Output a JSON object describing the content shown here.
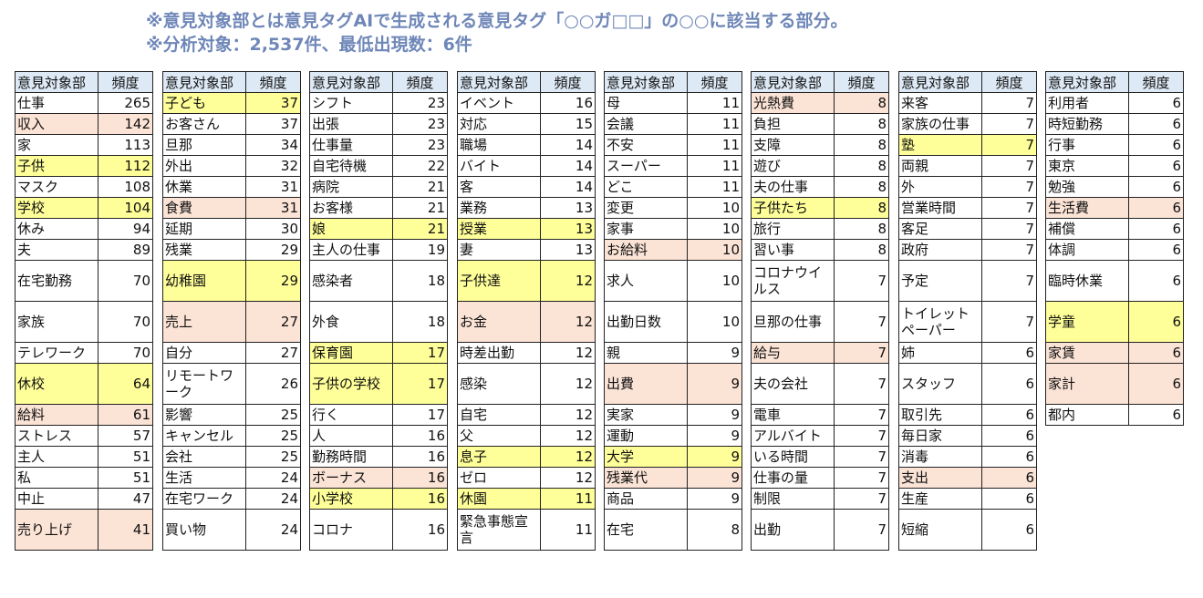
{
  "notes": {
    "line1": "※意見対象部とは意見タグAIで生成される意見タグ「○○ガ□□」の○○に該当する部分。",
    "line2": "※分析対象：2,537件、最低出現数：6件"
  },
  "headers": {
    "word": "意見対象部",
    "freq": "頻度"
  },
  "colors": {
    "yellow": "#ffff99",
    "pink": "#fbe3d6",
    "header": "#dde9f5",
    "note": "#6f87b8"
  },
  "columns": [
    [
      {
        "w": "仕事",
        "f": "265",
        "h": ""
      },
      {
        "w": "収入",
        "f": "142",
        "h": "pink"
      },
      {
        "w": "家",
        "f": "113",
        "h": ""
      },
      {
        "w": "子供",
        "f": "112",
        "h": "yellow"
      },
      {
        "w": "マスク",
        "f": "108",
        "h": ""
      },
      {
        "w": "学校",
        "f": "104",
        "h": "yellow"
      },
      {
        "w": "休み",
        "f": "94",
        "h": ""
      },
      {
        "w": "夫",
        "f": "89",
        "h": ""
      },
      {
        "w": "在宅勤務",
        "f": "70",
        "h": ""
      },
      {
        "w": "家族",
        "f": "70",
        "h": ""
      },
      {
        "w": "テレワーク",
        "f": "70",
        "h": ""
      },
      {
        "w": "休校",
        "f": "64",
        "h": "yellow"
      },
      {
        "w": "給料",
        "f": "61",
        "h": "pink"
      },
      {
        "w": "ストレス",
        "f": "57",
        "h": ""
      },
      {
        "w": "主人",
        "f": "51",
        "h": ""
      },
      {
        "w": "私",
        "f": "51",
        "h": ""
      },
      {
        "w": "中止",
        "f": "47",
        "h": ""
      },
      {
        "w": "売り上げ",
        "f": "41",
        "h": "pink"
      }
    ],
    [
      {
        "w": "子ども",
        "f": "37",
        "h": "yellow"
      },
      {
        "w": "お客さん",
        "f": "37",
        "h": ""
      },
      {
        "w": "旦那",
        "f": "34",
        "h": ""
      },
      {
        "w": "外出",
        "f": "32",
        "h": ""
      },
      {
        "w": "休業",
        "f": "31",
        "h": ""
      },
      {
        "w": "食費",
        "f": "31",
        "h": "pink"
      },
      {
        "w": "延期",
        "f": "30",
        "h": ""
      },
      {
        "w": "残業",
        "f": "29",
        "h": ""
      },
      {
        "w": "幼稚園",
        "f": "29",
        "h": "yellow"
      },
      {
        "w": "売上",
        "f": "27",
        "h": "pink"
      },
      {
        "w": "自分",
        "f": "27",
        "h": ""
      },
      {
        "w": "リモートワーク",
        "f": "26",
        "h": ""
      },
      {
        "w": "影響",
        "f": "25",
        "h": ""
      },
      {
        "w": "キャンセル",
        "f": "25",
        "h": ""
      },
      {
        "w": "会社",
        "f": "25",
        "h": ""
      },
      {
        "w": "生活",
        "f": "24",
        "h": ""
      },
      {
        "w": "在宅ワーク",
        "f": "24",
        "h": ""
      },
      {
        "w": "買い物",
        "f": "24",
        "h": ""
      }
    ],
    [
      {
        "w": "シフト",
        "f": "23",
        "h": ""
      },
      {
        "w": "出張",
        "f": "23",
        "h": ""
      },
      {
        "w": "仕事量",
        "f": "23",
        "h": ""
      },
      {
        "w": "自宅待機",
        "f": "22",
        "h": ""
      },
      {
        "w": "病院",
        "f": "21",
        "h": ""
      },
      {
        "w": "お客様",
        "f": "21",
        "h": ""
      },
      {
        "w": "娘",
        "f": "21",
        "h": "yellow"
      },
      {
        "w": "主人の仕事",
        "f": "19",
        "h": ""
      },
      {
        "w": "感染者",
        "f": "18",
        "h": ""
      },
      {
        "w": "外食",
        "f": "18",
        "h": ""
      },
      {
        "w": "保育園",
        "f": "17",
        "h": "yellow"
      },
      {
        "w": "子供の学校",
        "f": "17",
        "h": "yellow"
      },
      {
        "w": "行く",
        "f": "17",
        "h": ""
      },
      {
        "w": "人",
        "f": "16",
        "h": ""
      },
      {
        "w": "勤務時間",
        "f": "16",
        "h": ""
      },
      {
        "w": "ボーナス",
        "f": "16",
        "h": "pink"
      },
      {
        "w": "小学校",
        "f": "16",
        "h": "yellow"
      },
      {
        "w": "コロナ",
        "f": "16",
        "h": ""
      }
    ],
    [
      {
        "w": "イベント",
        "f": "16",
        "h": ""
      },
      {
        "w": "対応",
        "f": "15",
        "h": ""
      },
      {
        "w": "職場",
        "f": "14",
        "h": ""
      },
      {
        "w": "バイト",
        "f": "14",
        "h": ""
      },
      {
        "w": "客",
        "f": "14",
        "h": ""
      },
      {
        "w": "業務",
        "f": "13",
        "h": ""
      },
      {
        "w": "授業",
        "f": "13",
        "h": "yellow"
      },
      {
        "w": "妻",
        "f": "13",
        "h": ""
      },
      {
        "w": "子供達",
        "f": "12",
        "h": "yellow"
      },
      {
        "w": "お金",
        "f": "12",
        "h": "pink"
      },
      {
        "w": "時差出勤",
        "f": "12",
        "h": ""
      },
      {
        "w": "感染",
        "f": "12",
        "h": ""
      },
      {
        "w": "自宅",
        "f": "12",
        "h": ""
      },
      {
        "w": "父",
        "f": "12",
        "h": ""
      },
      {
        "w": "息子",
        "f": "12",
        "h": "yellow"
      },
      {
        "w": "ゼロ",
        "f": "12",
        "h": ""
      },
      {
        "w": "休園",
        "f": "11",
        "h": "yellow"
      },
      {
        "w": "緊急事態宣言",
        "f": "11",
        "h": ""
      }
    ],
    [
      {
        "w": "母",
        "f": "11",
        "h": ""
      },
      {
        "w": "会議",
        "f": "11",
        "h": ""
      },
      {
        "w": "不安",
        "f": "11",
        "h": ""
      },
      {
        "w": "スーパー",
        "f": "11",
        "h": ""
      },
      {
        "w": "どこ",
        "f": "11",
        "h": ""
      },
      {
        "w": "変更",
        "f": "10",
        "h": ""
      },
      {
        "w": "家事",
        "f": "10",
        "h": ""
      },
      {
        "w": "お給料",
        "f": "10",
        "h": "pink"
      },
      {
        "w": "求人",
        "f": "10",
        "h": ""
      },
      {
        "w": "出勤日数",
        "f": "10",
        "h": ""
      },
      {
        "w": "親",
        "f": "9",
        "h": ""
      },
      {
        "w": "出費",
        "f": "9",
        "h": "pink"
      },
      {
        "w": "実家",
        "f": "9",
        "h": ""
      },
      {
        "w": "運動",
        "f": "9",
        "h": ""
      },
      {
        "w": "大学",
        "f": "9",
        "h": "yellow"
      },
      {
        "w": "残業代",
        "f": "9",
        "h": "pink"
      },
      {
        "w": "商品",
        "f": "9",
        "h": ""
      },
      {
        "w": "在宅",
        "f": "8",
        "h": ""
      }
    ],
    [
      {
        "w": "光熱費",
        "f": "8",
        "h": "pink"
      },
      {
        "w": "負担",
        "f": "8",
        "h": ""
      },
      {
        "w": "支障",
        "f": "8",
        "h": ""
      },
      {
        "w": "遊び",
        "f": "8",
        "h": ""
      },
      {
        "w": "夫の仕事",
        "f": "8",
        "h": ""
      },
      {
        "w": "子供たち",
        "f": "8",
        "h": "yellow"
      },
      {
        "w": "旅行",
        "f": "8",
        "h": ""
      },
      {
        "w": "習い事",
        "f": "8",
        "h": ""
      },
      {
        "w": "コロナウイルス",
        "f": "7",
        "h": ""
      },
      {
        "w": "旦那の仕事",
        "f": "7",
        "h": ""
      },
      {
        "w": "給与",
        "f": "7",
        "h": "pink"
      },
      {
        "w": "夫の会社",
        "f": "7",
        "h": ""
      },
      {
        "w": "電車",
        "f": "7",
        "h": ""
      },
      {
        "w": "アルバイト",
        "f": "7",
        "h": ""
      },
      {
        "w": "いる時間",
        "f": "7",
        "h": ""
      },
      {
        "w": "仕事の量",
        "f": "7",
        "h": ""
      },
      {
        "w": "制限",
        "f": "7",
        "h": ""
      },
      {
        "w": "出勤",
        "f": "7",
        "h": ""
      }
    ],
    [
      {
        "w": "来客",
        "f": "7",
        "h": ""
      },
      {
        "w": "家族の仕事",
        "f": "7",
        "h": ""
      },
      {
        "w": "塾",
        "f": "7",
        "h": "yellow"
      },
      {
        "w": "両親",
        "f": "7",
        "h": ""
      },
      {
        "w": "外",
        "f": "7",
        "h": ""
      },
      {
        "w": "営業時間",
        "f": "7",
        "h": ""
      },
      {
        "w": "客足",
        "f": "7",
        "h": ""
      },
      {
        "w": "政府",
        "f": "7",
        "h": ""
      },
      {
        "w": "予定",
        "f": "7",
        "h": ""
      },
      {
        "w": "トイレットペーパー",
        "f": "7",
        "h": ""
      },
      {
        "w": "姉",
        "f": "6",
        "h": ""
      },
      {
        "w": "スタッフ",
        "f": "6",
        "h": ""
      },
      {
        "w": "取引先",
        "f": "6",
        "h": ""
      },
      {
        "w": "毎日家",
        "f": "6",
        "h": ""
      },
      {
        "w": "消毒",
        "f": "6",
        "h": ""
      },
      {
        "w": "支出",
        "f": "6",
        "h": "pink"
      },
      {
        "w": "生産",
        "f": "6",
        "h": ""
      },
      {
        "w": "短縮",
        "f": "6",
        "h": ""
      }
    ],
    [
      {
        "w": "利用者",
        "f": "6",
        "h": ""
      },
      {
        "w": "時短勤務",
        "f": "6",
        "h": ""
      },
      {
        "w": "行事",
        "f": "6",
        "h": ""
      },
      {
        "w": "東京",
        "f": "6",
        "h": ""
      },
      {
        "w": "勉強",
        "f": "6",
        "h": ""
      },
      {
        "w": "生活費",
        "f": "6",
        "h": "pink"
      },
      {
        "w": "補償",
        "f": "6",
        "h": ""
      },
      {
        "w": "体調",
        "f": "6",
        "h": ""
      },
      {
        "w": "臨時休業",
        "f": "6",
        "h": ""
      },
      {
        "w": "学童",
        "f": "6",
        "h": "yellow"
      },
      {
        "w": "家賃",
        "f": "6",
        "h": "pink"
      },
      {
        "w": "家計",
        "f": "6",
        "h": "pink"
      },
      {
        "w": "都内",
        "f": "6",
        "h": ""
      }
    ]
  ]
}
